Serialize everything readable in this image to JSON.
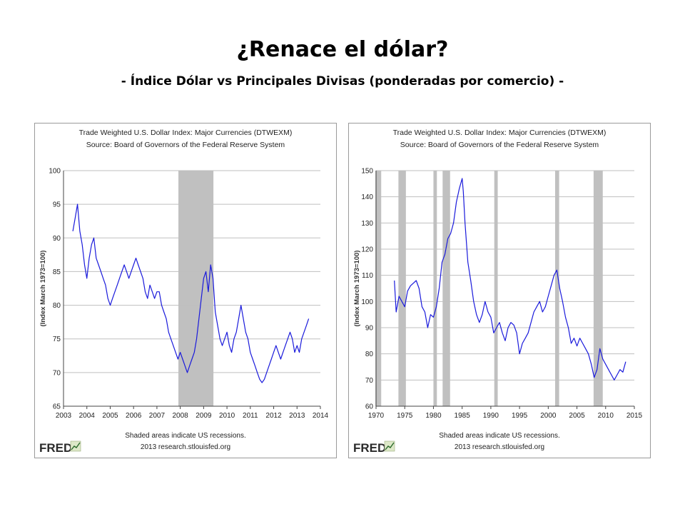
{
  "slide": {
    "title": "¿Renace el dólar?",
    "subtitle": "- Índice Dólar vs Principales Divisas (ponderadas por comercio) -"
  },
  "colors": {
    "series": "#1a1adb",
    "recession": "#c0c0c0",
    "grid": "#bfbfbf"
  },
  "chart_data": [
    {
      "type": "line",
      "title": "Trade Weighted U.S. Dollar Index: Major Currencies (DTWEXM)",
      "subtitle": "Source: Board of Governors of the Federal Reserve System",
      "ylabel": "(Index March 1973=100)",
      "xlabel": "",
      "xlim": [
        2003,
        2014
      ],
      "ylim": [
        65,
        100
      ],
      "x_ticks": [
        2003,
        2004,
        2005,
        2006,
        2007,
        2008,
        2009,
        2010,
        2011,
        2012,
        2013,
        2014
      ],
      "y_ticks": [
        65,
        70,
        75,
        80,
        85,
        90,
        95,
        100
      ],
      "grid": true,
      "recessions": [
        [
          2007.92,
          2009.42
        ]
      ],
      "footnote": "Shaded areas indicate US recessions.",
      "credit": "2013 research.stlouisfed.org",
      "logo": "FRED",
      "series": [
        {
          "x": [
            2003.4,
            2003.5,
            2003.6,
            2003.7,
            2003.8,
            2003.9,
            2004.0,
            2004.1,
            2004.2,
            2004.3,
            2004.4,
            2004.5,
            2004.6,
            2004.7,
            2004.8,
            2004.9,
            2005.0,
            2005.1,
            2005.2,
            2005.3,
            2005.4,
            2005.5,
            2005.6,
            2005.7,
            2005.8,
            2005.9,
            2006.0,
            2006.1,
            2006.2,
            2006.3,
            2006.4,
            2006.5,
            2006.6,
            2006.7,
            2006.8,
            2006.9,
            2007.0,
            2007.1,
            2007.2,
            2007.3,
            2007.4,
            2007.5,
            2007.6,
            2007.7,
            2007.8,
            2007.9,
            2008.0,
            2008.1,
            2008.2,
            2008.3,
            2008.4,
            2008.5,
            2008.6,
            2008.7,
            2008.8,
            2008.9,
            2009.0,
            2009.1,
            2009.2,
            2009.3,
            2009.4,
            2009.5,
            2009.6,
            2009.7,
            2009.8,
            2009.9,
            2010.0,
            2010.1,
            2010.2,
            2010.3,
            2010.4,
            2010.5,
            2010.6,
            2010.7,
            2010.8,
            2010.9,
            2011.0,
            2011.1,
            2011.2,
            2011.3,
            2011.4,
            2011.5,
            2011.6,
            2011.7,
            2011.8,
            2011.9,
            2012.0,
            2012.1,
            2012.2,
            2012.3,
            2012.4,
            2012.5,
            2012.6,
            2012.7,
            2012.8,
            2012.9,
            2013.0,
            2013.1,
            2013.2,
            2013.3,
            2013.4,
            2013.5
          ],
          "y": [
            91,
            93,
            95,
            91,
            89,
            86,
            84,
            87,
            89,
            90,
            87,
            86,
            85,
            84,
            83,
            81,
            80,
            81,
            82,
            83,
            84,
            85,
            86,
            85,
            84,
            85,
            86,
            87,
            86,
            85,
            84,
            82,
            81,
            83,
            82,
            81,
            82,
            82,
            80,
            79,
            78,
            76,
            75,
            74,
            73,
            72,
            73,
            72,
            71,
            70,
            71,
            72,
            73,
            75,
            78,
            81,
            84,
            85,
            82,
            86,
            84,
            79,
            77,
            75,
            74,
            75,
            76,
            74,
            73,
            75,
            76,
            78,
            80,
            78,
            76,
            75,
            73,
            72,
            71,
            70,
            69,
            68.5,
            69,
            70,
            71,
            72,
            73,
            74,
            73,
            72,
            73,
            74,
            75,
            76,
            75,
            73,
            74,
            73,
            75,
            76,
            77,
            78
          ]
        }
      ]
    },
    {
      "type": "line",
      "title": "Trade Weighted U.S. Dollar Index: Major Currencies (DTWEXM)",
      "subtitle": "Source: Board of Governors of the Federal Reserve System",
      "ylabel": "(Index March 1973=100)",
      "xlabel": "",
      "xlim": [
        1970,
        2015
      ],
      "ylim": [
        60,
        150
      ],
      "x_ticks": [
        1970,
        1975,
        1980,
        1985,
        1990,
        1995,
        2000,
        2005,
        2010,
        2015
      ],
      "y_ticks": [
        60,
        70,
        80,
        90,
        100,
        110,
        120,
        130,
        140,
        150
      ],
      "grid": true,
      "recessions": [
        [
          1969.9,
          1970.9
        ],
        [
          1973.9,
          1975.2
        ],
        [
          1980.0,
          1980.6
        ],
        [
          1981.6,
          1982.9
        ],
        [
          1990.6,
          1991.2
        ],
        [
          2001.2,
          2001.9
        ],
        [
          2007.9,
          2009.5
        ]
      ],
      "footnote": "Shaded areas indicate US recessions.",
      "credit": "2013 research.stlouisfed.org",
      "logo": "FRED",
      "series": [
        {
          "x": [
            1973.2,
            1973.5,
            1974.0,
            1974.5,
            1975.0,
            1975.5,
            1976.0,
            1976.5,
            1977.0,
            1977.5,
            1978.0,
            1978.5,
            1979.0,
            1979.5,
            1980.0,
            1980.5,
            1981.0,
            1981.5,
            1982.0,
            1982.5,
            1983.0,
            1983.5,
            1984.0,
            1984.5,
            1985.0,
            1985.2,
            1985.5,
            1986.0,
            1986.5,
            1987.0,
            1987.5,
            1988.0,
            1988.5,
            1989.0,
            1989.5,
            1990.0,
            1990.5,
            1991.0,
            1991.5,
            1992.0,
            1992.5,
            1993.0,
            1993.5,
            1994.0,
            1994.5,
            1995.0,
            1995.5,
            1996.0,
            1996.5,
            1997.0,
            1997.5,
            1998.0,
            1998.5,
            1999.0,
            1999.5,
            2000.0,
            2000.5,
            2001.0,
            2001.5,
            2002.0,
            2002.5,
            2003.0,
            2003.5,
            2004.0,
            2004.5,
            2005.0,
            2005.5,
            2006.0,
            2006.5,
            2007.0,
            2007.5,
            2008.0,
            2008.5,
            2009.0,
            2009.5,
            2010.0,
            2010.5,
            2011.0,
            2011.5,
            2012.0,
            2012.5,
            2013.0,
            2013.5
          ],
          "y": [
            108,
            96,
            102,
            100,
            98,
            104,
            106,
            107,
            108,
            105,
            98,
            96,
            90,
            95,
            94,
            98,
            105,
            115,
            118,
            124,
            126,
            130,
            138,
            143,
            147,
            142,
            130,
            115,
            108,
            100,
            95,
            92,
            95,
            100,
            96,
            94,
            88,
            90,
            92,
            88,
            85,
            90,
            92,
            91,
            88,
            80,
            84,
            86,
            88,
            92,
            96,
            98,
            100,
            96,
            98,
            102,
            106,
            110,
            112,
            105,
            100,
            94,
            90,
            84,
            86,
            83,
            86,
            84,
            82,
            80,
            76,
            71,
            74,
            82,
            78,
            76,
            74,
            72,
            70,
            72,
            74,
            73,
            77
          ]
        }
      ]
    }
  ]
}
